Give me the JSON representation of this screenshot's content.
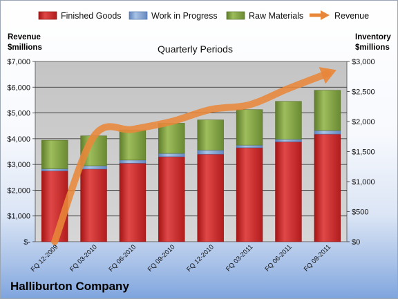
{
  "chart_data": {
    "type": "bar",
    "stacked": true,
    "title": "Quarterly Periods",
    "categories": [
      "FQ 12-2009",
      "FQ 03-2010",
      "FQ 06-2010",
      "FQ 09-2010",
      "FQ 12-2010",
      "FQ 03-2011",
      "FQ 06-2011",
      "FQ 09-2011"
    ],
    "series": [
      {
        "name": "Finished Goods",
        "axis": "left",
        "color": "#cc2a2a",
        "values": [
          2750,
          2820,
          3050,
          3300,
          3400,
          3650,
          3880,
          4180
        ]
      },
      {
        "name": "Work in Progress",
        "axis": "left",
        "color": "#7b9fd1",
        "values": [
          80,
          130,
          120,
          130,
          160,
          100,
          100,
          140
        ]
      },
      {
        "name": "Raw Materials",
        "axis": "left",
        "color": "#84a24a",
        "values": [
          1110,
          1160,
          1170,
          1170,
          1170,
          1380,
          1470,
          1560
        ]
      }
    ],
    "line_series": {
      "name": "Revenue",
      "axis": "right",
      "color": "#e8873a",
      "values": [
        0,
        1750,
        1870,
        2000,
        2200,
        2280,
        2550,
        2800
      ]
    },
    "y_left": {
      "label": "Revenue\n$millions",
      "ylim": [
        0,
        7000
      ],
      "ticks": [
        0,
        1000,
        2000,
        3000,
        4000,
        5000,
        6000,
        7000
      ],
      "tick_labels": [
        "$-",
        "$1,000",
        "$2,000",
        "$3,000",
        "$4,000",
        "$5,000",
        "$6,000",
        "$7,000"
      ]
    },
    "y_right": {
      "label": "Inventory\n$millions",
      "ylim": [
        0,
        3000
      ],
      "ticks": [
        0,
        500,
        1000,
        1500,
        2000,
        2500,
        3000
      ],
      "tick_labels": [
        "$0",
        "$500",
        "$1,000",
        "$1,500",
        "$2,000",
        "$2,500",
        "$3,000"
      ]
    },
    "grid": true,
    "legend": "top",
    "legend_entries": [
      "Finished Goods",
      "Work in Progress",
      "Raw Materials",
      "Revenue"
    ]
  },
  "footer": {
    "company": "Halliburton Company"
  },
  "colors": {
    "plot_background": "#c9c9c9",
    "gridline": "#222222"
  }
}
